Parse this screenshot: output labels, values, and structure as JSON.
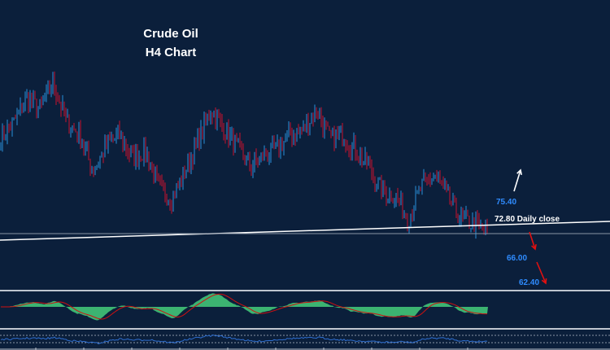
{
  "chart_data": {
    "type": "candlestick",
    "title": "Crude Oil",
    "subtitle": "H4 Chart",
    "price_path": [
      82.4,
      84.2,
      86.9,
      85.6,
      88.5,
      84.2,
      82.9,
      78.8,
      81.5,
      82.9,
      80.2,
      81.1,
      77.0,
      75.7,
      78.8,
      82.0,
      85.6,
      83.3,
      81.5,
      79.3,
      80.6,
      81.1,
      82.9,
      83.3,
      85.6,
      82.4,
      82.9,
      81.1,
      79.3,
      76.6,
      76.1,
      73.6,
      77.0,
      78.4,
      76.1,
      73.4,
      73.0,
      72.1
    ],
    "levels": [
      {
        "label": "75.40",
        "value": 75.4,
        "direction": "up",
        "color": "#2f8cff"
      },
      {
        "label": "72.80 Daily close",
        "value": 72.8,
        "color": "#ffffff"
      },
      {
        "label": "66.00",
        "value": 66.0,
        "direction": "down",
        "color": "#2f8cff"
      },
      {
        "label": "62.40",
        "value": 62.4,
        "direction": "down",
        "color": "#2f8cff"
      }
    ],
    "colors": {
      "background": "#0b1f3b",
      "bull": "#2a8fd8",
      "bear": "#c8102e",
      "oscillator": "#3cb371",
      "signal": "#d01010",
      "rsi": "#2f6fd0"
    },
    "grid": false,
    "legend": "none"
  }
}
